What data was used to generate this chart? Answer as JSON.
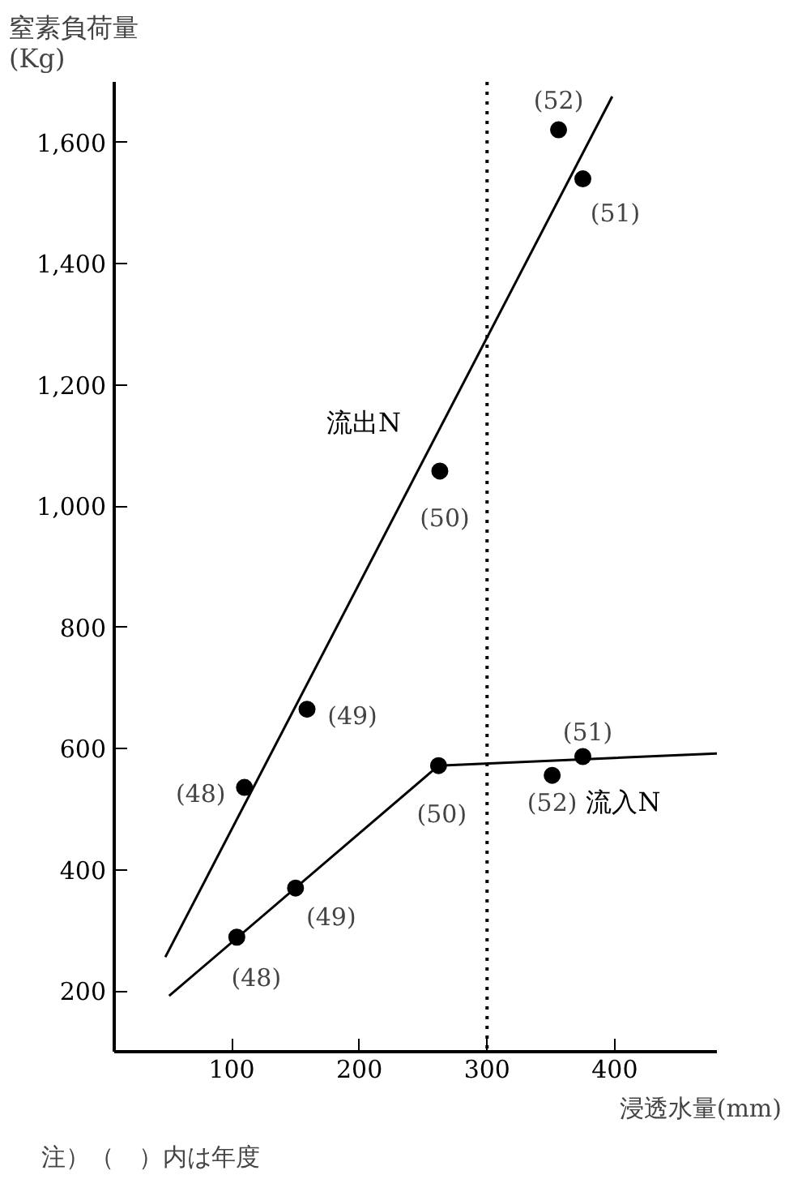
{
  "chart_data": {
    "type": "scatter",
    "xlabel": "浸透水量(mm)",
    "ylabel": "窒素負荷量\n(Kg)",
    "xlim": [
      8,
      480
    ],
    "ylim": [
      100,
      1700
    ],
    "xticks": [
      100,
      200,
      300,
      400
    ],
    "yticks": [
      200,
      400,
      600,
      800,
      {
        "value": 1000,
        "label": "1,000"
      },
      {
        "value": 1200,
        "label": "1,200"
      },
      {
        "value": 1400,
        "label": "1,400"
      },
      {
        "value": 1600,
        "label": "1,600"
      }
    ],
    "grid": false,
    "legend": false,
    "marker": "circle",
    "series": [
      {
        "name": "流出N",
        "color": "#000000",
        "x": [
          110,
          159,
          263,
          375,
          356
        ],
        "values": [
          536,
          665,
          1058,
          1540,
          1621
        ]
      },
      {
        "type": "line",
        "marker": "none",
        "color": "#000000",
        "x": [
          48,
          398
        ],
        "values": [
          256,
          1676
        ]
      },
      {
        "name": "流入N",
        "color": "#000000",
        "x": [
          104,
          150,
          262,
          375,
          351
        ],
        "values": [
          289,
          370,
          572,
          587,
          556
        ]
      },
      {
        "type": "line",
        "marker": "none",
        "color": "#000000",
        "x": [
          51,
          262,
          480
        ],
        "values": [
          192,
          572,
          592
        ]
      }
    ],
    "ref_lines": [
      {
        "axis": "x",
        "value": 300,
        "line_style": "dotted",
        "color": "#000000"
      }
    ],
    "annotations": [
      {
        "text": "(48)",
        "x": 110,
        "y": 536
      },
      {
        "text": "(49)",
        "x": 159,
        "y": 665
      },
      {
        "text": "(50)",
        "x": 263,
        "y": 1058
      },
      {
        "text": "(51)",
        "x": 375,
        "y": 1540
      },
      {
        "text": "(52)",
        "x": 356,
        "y": 1621
      },
      {
        "text": "(48)",
        "x": 104,
        "y": 289
      },
      {
        "text": "(49)",
        "x": 150,
        "y": 370
      },
      {
        "text": "(50)",
        "x": 262,
        "y": 572
      },
      {
        "text": "(51)",
        "x": 375,
        "y": 587
      },
      {
        "text": "(52)",
        "x": 351,
        "y": 556
      },
      "注）（　）内は年度"
    ]
  }
}
